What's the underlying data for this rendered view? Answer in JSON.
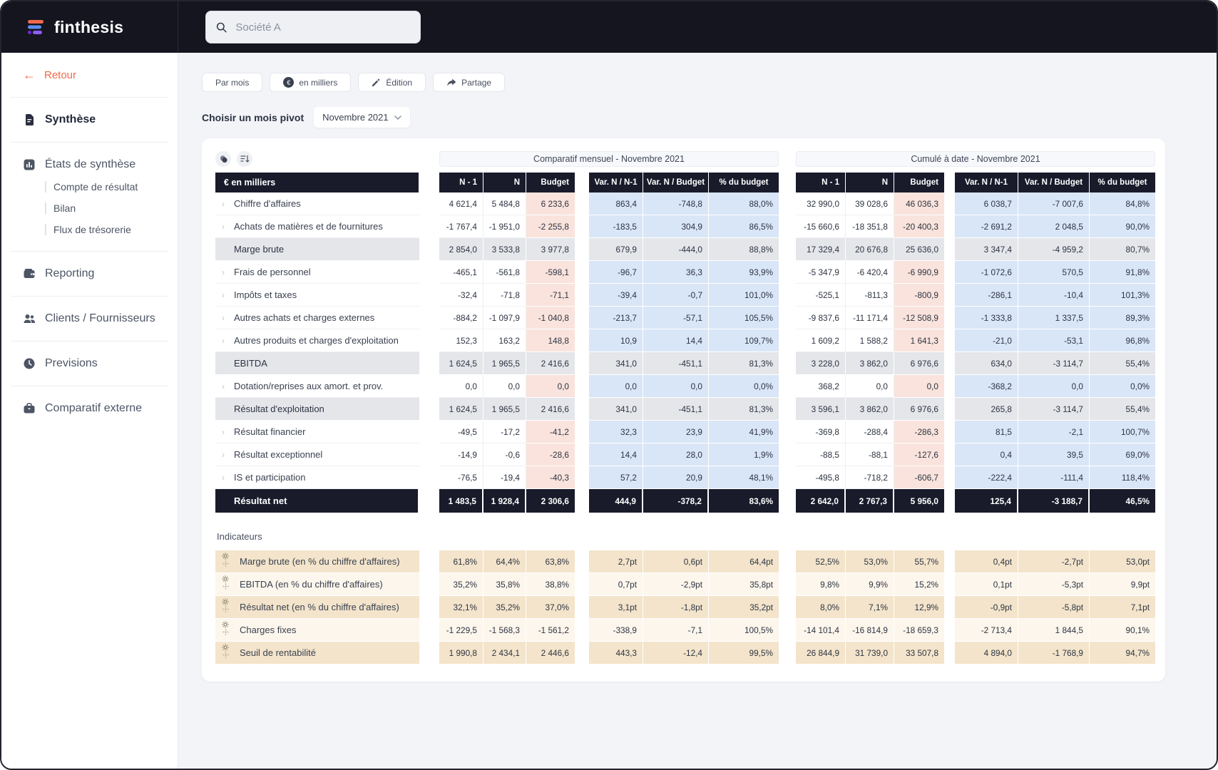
{
  "brand": {
    "name": "finthesis"
  },
  "search": {
    "placeholder": "Société A"
  },
  "sidebar": {
    "back": "Retour",
    "items": [
      {
        "label": "Synthèse"
      },
      {
        "label": "États de synthèse",
        "children": [
          "Compte de résultat",
          "Bilan",
          "Flux de trésorerie"
        ]
      },
      {
        "label": "Reporting"
      },
      {
        "label": "Clients / Fournisseurs"
      },
      {
        "label": "Previsions"
      },
      {
        "label": "Comparatif externe"
      }
    ]
  },
  "toolbar": {
    "par_mois": "Par mois",
    "en_milliers": "en milliers",
    "edition": "Édition",
    "partage": "Partage"
  },
  "pivot": {
    "label": "Choisir un mois pivot",
    "value": "Novembre 2021"
  },
  "table": {
    "unit_header": "€ en milliers",
    "group_titles": [
      "Comparatif mensuel - Novembre 2021",
      "Cumulé à date - Novembre 2021"
    ],
    "column_headers": [
      "N - 1",
      "N",
      "Budget",
      "Var. N / N-1",
      "Var. N / Budget",
      "% du budget",
      "N - 1",
      "N",
      "Budget",
      "Var. N / N-1",
      "Var. N / Budget",
      "% du budget"
    ],
    "rows": [
      {
        "label": "Chiffre d'affaires",
        "type": "item",
        "values": [
          "4 621,4",
          "5 484,8",
          "6 233,6",
          "863,4",
          "-748,8",
          "88,0%",
          "32 990,0",
          "39 028,6",
          "46 036,3",
          "6 038,7",
          "-7 007,6",
          "84,8%"
        ]
      },
      {
        "label": "Achats de matières et de fournitures",
        "type": "item",
        "values": [
          "-1 767,4",
          "-1 951,0",
          "-2 255,8",
          "-183,5",
          "304,9",
          "86,5%",
          "-15 660,6",
          "-18 351,8",
          "-20 400,3",
          "-2 691,2",
          "2 048,5",
          "90,0%"
        ]
      },
      {
        "label": "Marge brute",
        "type": "sub",
        "values": [
          "2 854,0",
          "3 533,8",
          "3 977,8",
          "679,9",
          "-444,0",
          "88,8%",
          "17 329,4",
          "20 676,8",
          "25 636,0",
          "3 347,4",
          "-4 959,2",
          "80,7%"
        ]
      },
      {
        "label": "Frais de personnel",
        "type": "item",
        "values": [
          "-465,1",
          "-561,8",
          "-598,1",
          "-96,7",
          "36,3",
          "93,9%",
          "-5 347,9",
          "-6 420,4",
          "-6 990,9",
          "-1 072,6",
          "570,5",
          "91,8%"
        ]
      },
      {
        "label": "Impôts et taxes",
        "type": "item",
        "values": [
          "-32,4",
          "-71,8",
          "-71,1",
          "-39,4",
          "-0,7",
          "101,0%",
          "-525,1",
          "-811,3",
          "-800,9",
          "-286,1",
          "-10,4",
          "101,3%"
        ]
      },
      {
        "label": "Autres achats et charges externes",
        "type": "item",
        "values": [
          "-884,2",
          "-1 097,9",
          "-1 040,8",
          "-213,7",
          "-57,1",
          "105,5%",
          "-9 837,6",
          "-11 171,4",
          "-12 508,9",
          "-1 333,8",
          "1 337,5",
          "89,3%"
        ]
      },
      {
        "label": "Autres produits et charges d'exploitation",
        "type": "item",
        "values": [
          "152,3",
          "163,2",
          "148,8",
          "10,9",
          "14,4",
          "109,7%",
          "1 609,2",
          "1 588,2",
          "1 641,3",
          "-21,0",
          "-53,1",
          "96,8%"
        ]
      },
      {
        "label": "EBITDA",
        "type": "sub",
        "values": [
          "1 624,5",
          "1 965,5",
          "2 416,6",
          "341,0",
          "-451,1",
          "81,3%",
          "3 228,0",
          "3 862,0",
          "6 976,6",
          "634,0",
          "-3 114,7",
          "55,4%"
        ]
      },
      {
        "label": "Dotation/reprises aux amort. et prov.",
        "type": "item",
        "values": [
          "0,0",
          "0,0",
          "0,0",
          "0,0",
          "0,0",
          "0,0%",
          "368,2",
          "0,0",
          "0,0",
          "-368,2",
          "0,0",
          "0,0%"
        ]
      },
      {
        "label": "Résultat d'exploitation",
        "type": "sub",
        "values": [
          "1 624,5",
          "1 965,5",
          "2 416,6",
          "341,0",
          "-451,1",
          "81,3%",
          "3 596,1",
          "3 862,0",
          "6 976,6",
          "265,8",
          "-3 114,7",
          "55,4%"
        ]
      },
      {
        "label": "Résultat financier",
        "type": "item",
        "values": [
          "-49,5",
          "-17,2",
          "-41,2",
          "32,3",
          "23,9",
          "41,9%",
          "-369,8",
          "-288,4",
          "-286,3",
          "81,5",
          "-2,1",
          "100,7%"
        ]
      },
      {
        "label": "Résultat exceptionnel",
        "type": "item",
        "values": [
          "-14,9",
          "-0,6",
          "-28,6",
          "14,4",
          "28,0",
          "1,9%",
          "-88,5",
          "-88,1",
          "-127,6",
          "0,4",
          "39,5",
          "69,0%"
        ]
      },
      {
        "label": "IS et participation",
        "type": "item",
        "values": [
          "-76,5",
          "-19,4",
          "-40,3",
          "57,2",
          "20,9",
          "48,1%",
          "-495,8",
          "-718,2",
          "-606,7",
          "-222,4",
          "-111,4",
          "118,4%"
        ]
      },
      {
        "label": "Résultat net",
        "type": "total",
        "values": [
          "1 483,5",
          "1 928,4",
          "2 306,6",
          "444,9",
          "-378,2",
          "83,6%",
          "2 642,0",
          "2 767,3",
          "5 956,0",
          "125,4",
          "-3 188,7",
          "46,5%"
        ]
      }
    ],
    "indicators_title": "Indicateurs",
    "indicator_rows": [
      {
        "label": "Marge brute (en % du chiffre d'affaires)",
        "values": [
          "61,8%",
          "64,4%",
          "63,8%",
          "2,7pt",
          "0,6pt",
          "64,4pt",
          "52,5%",
          "53,0%",
          "55,7%",
          "0,4pt",
          "-2,7pt",
          "53,0pt"
        ]
      },
      {
        "label": "EBITDA (en % du chiffre d'affaires)",
        "values": [
          "35,2%",
          "35,8%",
          "38,8%",
          "0,7pt",
          "-2,9pt",
          "35,8pt",
          "9,8%",
          "9,9%",
          "15,2%",
          "0,1pt",
          "-5,3pt",
          "9,9pt"
        ]
      },
      {
        "label": "Résultat net (en % du chiffre d'affaires)",
        "values": [
          "32,1%",
          "35,2%",
          "37,0%",
          "3,1pt",
          "-1,8pt",
          "35,2pt",
          "8,0%",
          "7,1%",
          "12,9%",
          "-0,9pt",
          "-5,8pt",
          "7,1pt"
        ]
      },
      {
        "label": "Charges fixes",
        "values": [
          "-1 229,5",
          "-1 568,3",
          "-1 561,2",
          "-338,9",
          "-7,1",
          "100,5%",
          "-14 101,4",
          "-16 814,9",
          "-18 659,3",
          "-2 713,4",
          "1 844,5",
          "90,1%"
        ]
      },
      {
        "label": "Seuil de rentabilité",
        "values": [
          "1 990,8",
          "2 434,1",
          "2 446,6",
          "443,3",
          "-12,4",
          "99,5%",
          "26 844,9",
          "31 739,0",
          "33 507,8",
          "4 894,0",
          "-1 768,9",
          "94,7%"
        ]
      }
    ]
  },
  "colors": {
    "accent_coral": "#ef6a4c",
    "dark_navy": "#191b2b",
    "topbar": "#14151f",
    "var_blue": "#d9e6f7",
    "budget_pink": "#f9e3dc",
    "subtotal_gray": "#e4e6ea",
    "indicator_tan": "#f3e4cb",
    "indicator_cream": "#fcf6ec",
    "logo_orange": "#f2674d",
    "logo_blue": "#5b8def",
    "logo_purple": "#8b5cf6"
  }
}
